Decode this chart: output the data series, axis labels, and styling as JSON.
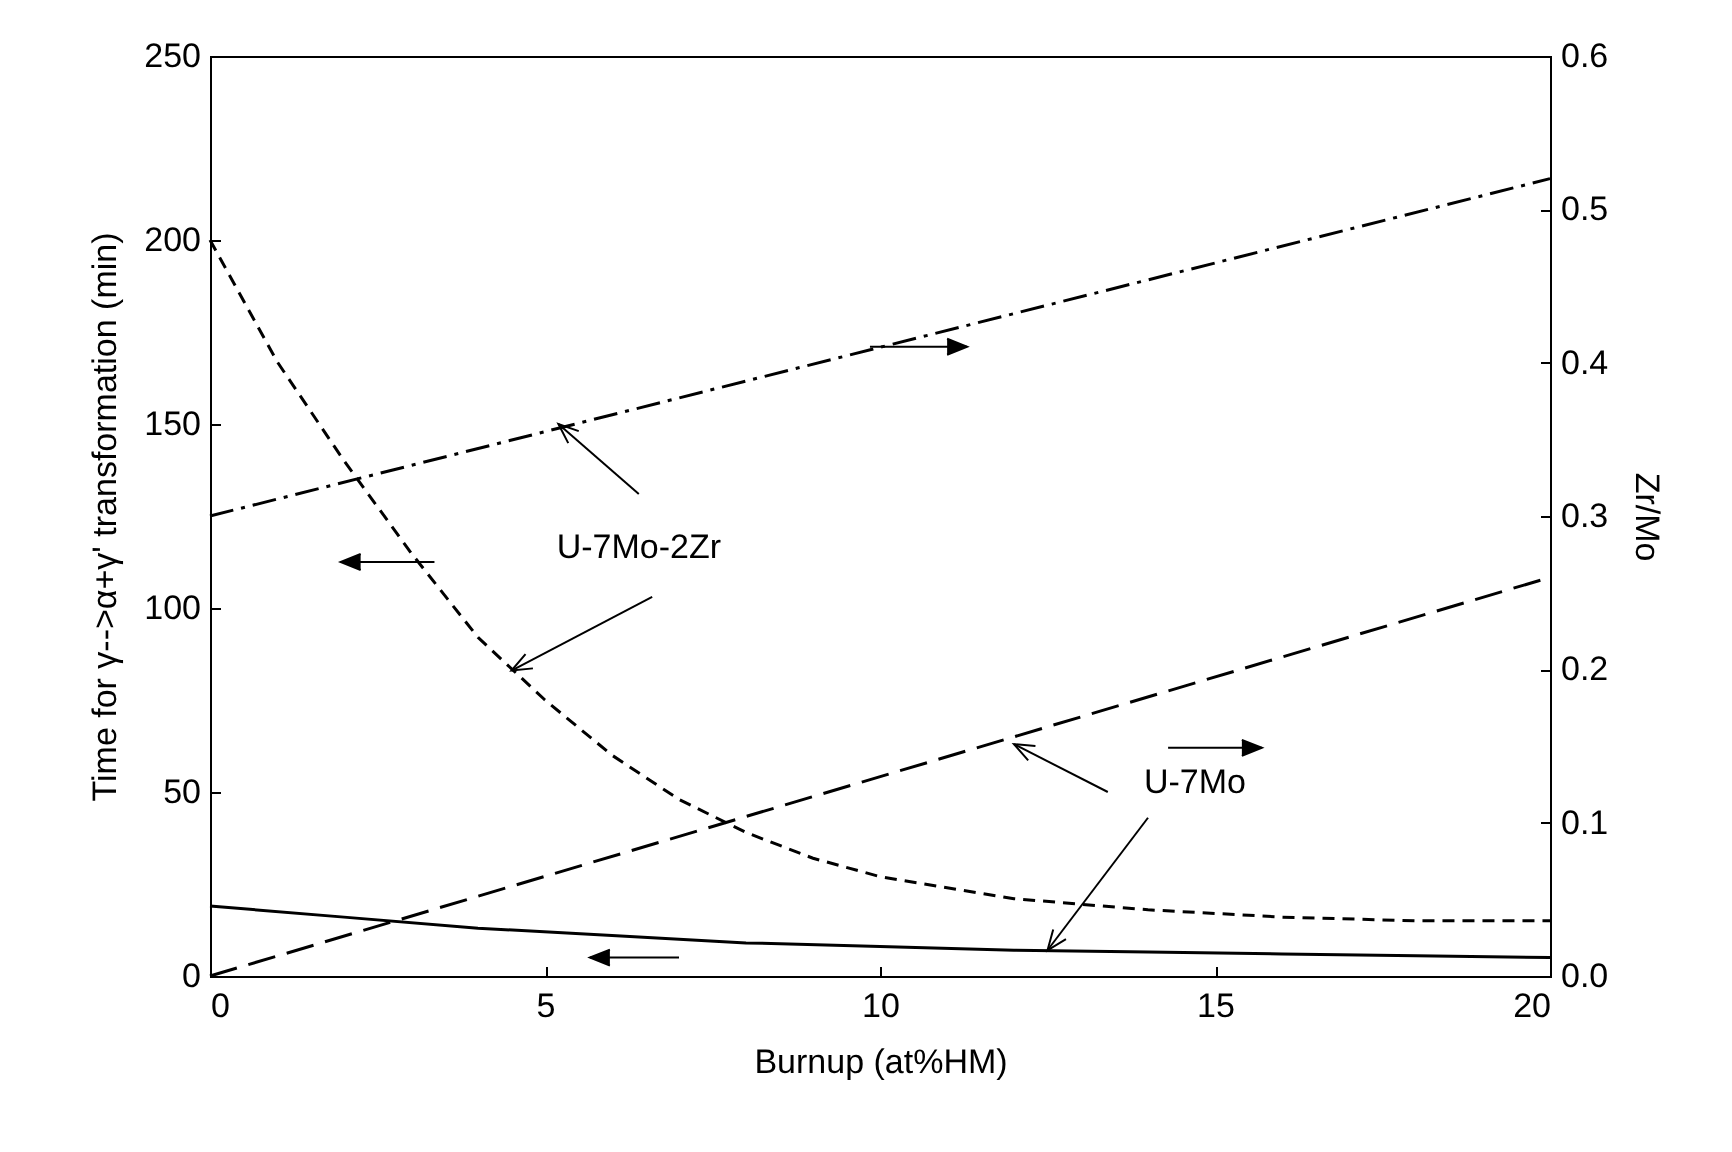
{
  "chart_data": {
    "type": "line",
    "xlabel": "Burnup (at%HM)",
    "ylabel": "Time for γ-->α+γ' transformation (min)",
    "y2label": "Zr/Mo",
    "xlim": [
      0,
      20
    ],
    "xticks": [
      0,
      5,
      10,
      15,
      20
    ],
    "ylim": [
      0,
      250
    ],
    "yticks": [
      0,
      50,
      100,
      150,
      200,
      250
    ],
    "y2lim": [
      0,
      0.6
    ],
    "y2ticks": [
      {
        "value": 0,
        "label": "0.0"
      },
      {
        "value": 0.1,
        "label": "0.1"
      },
      {
        "value": 0.2,
        "label": "0.2"
      },
      {
        "value": 0.3,
        "label": "0.3"
      },
      {
        "value": 0.4,
        "label": "0.4"
      },
      {
        "value": 0.5,
        "label": "0.5"
      },
      {
        "value": 0.6,
        "label": "0.6"
      }
    ],
    "grid": false,
    "legend": false,
    "marker": "none",
    "series": [
      {
        "color": "#000000",
        "line_style": "dashed",
        "x": [
          0,
          1,
          2,
          3,
          4,
          5,
          6,
          7,
          8,
          9,
          10,
          12,
          14,
          16,
          18,
          20
        ],
        "values": [
          200,
          167,
          140,
          115,
          92,
          75,
          60,
          48,
          39,
          32,
          27,
          21,
          18,
          16,
          15,
          15
        ]
      },
      {
        "color": "#000000",
        "line_style": "solid",
        "x": [
          0,
          2,
          4,
          6,
          8,
          10,
          12,
          14,
          16,
          18,
          20
        ],
        "values": [
          19,
          16,
          13,
          11,
          9,
          8,
          7,
          6.5,
          6,
          5.5,
          5
        ]
      },
      {
        "color": "#000000",
        "line_style": "dashed",
        "axis": "y2",
        "x": [
          0,
          20
        ],
        "values": [
          0.3,
          0.52
        ]
      },
      {
        "color": "#000000",
        "line_style": "dashed",
        "axis": "y2",
        "x": [
          0,
          20
        ],
        "values": [
          0,
          0.26
        ]
      }
    ],
    "annotations": [
      {
        "text": "U-7Mo-2Zr",
        "x": 4.5,
        "y": 83
      },
      {
        "text": "U-7Mo",
        "x": 12.5,
        "y": 7
      }
    ]
  }
}
